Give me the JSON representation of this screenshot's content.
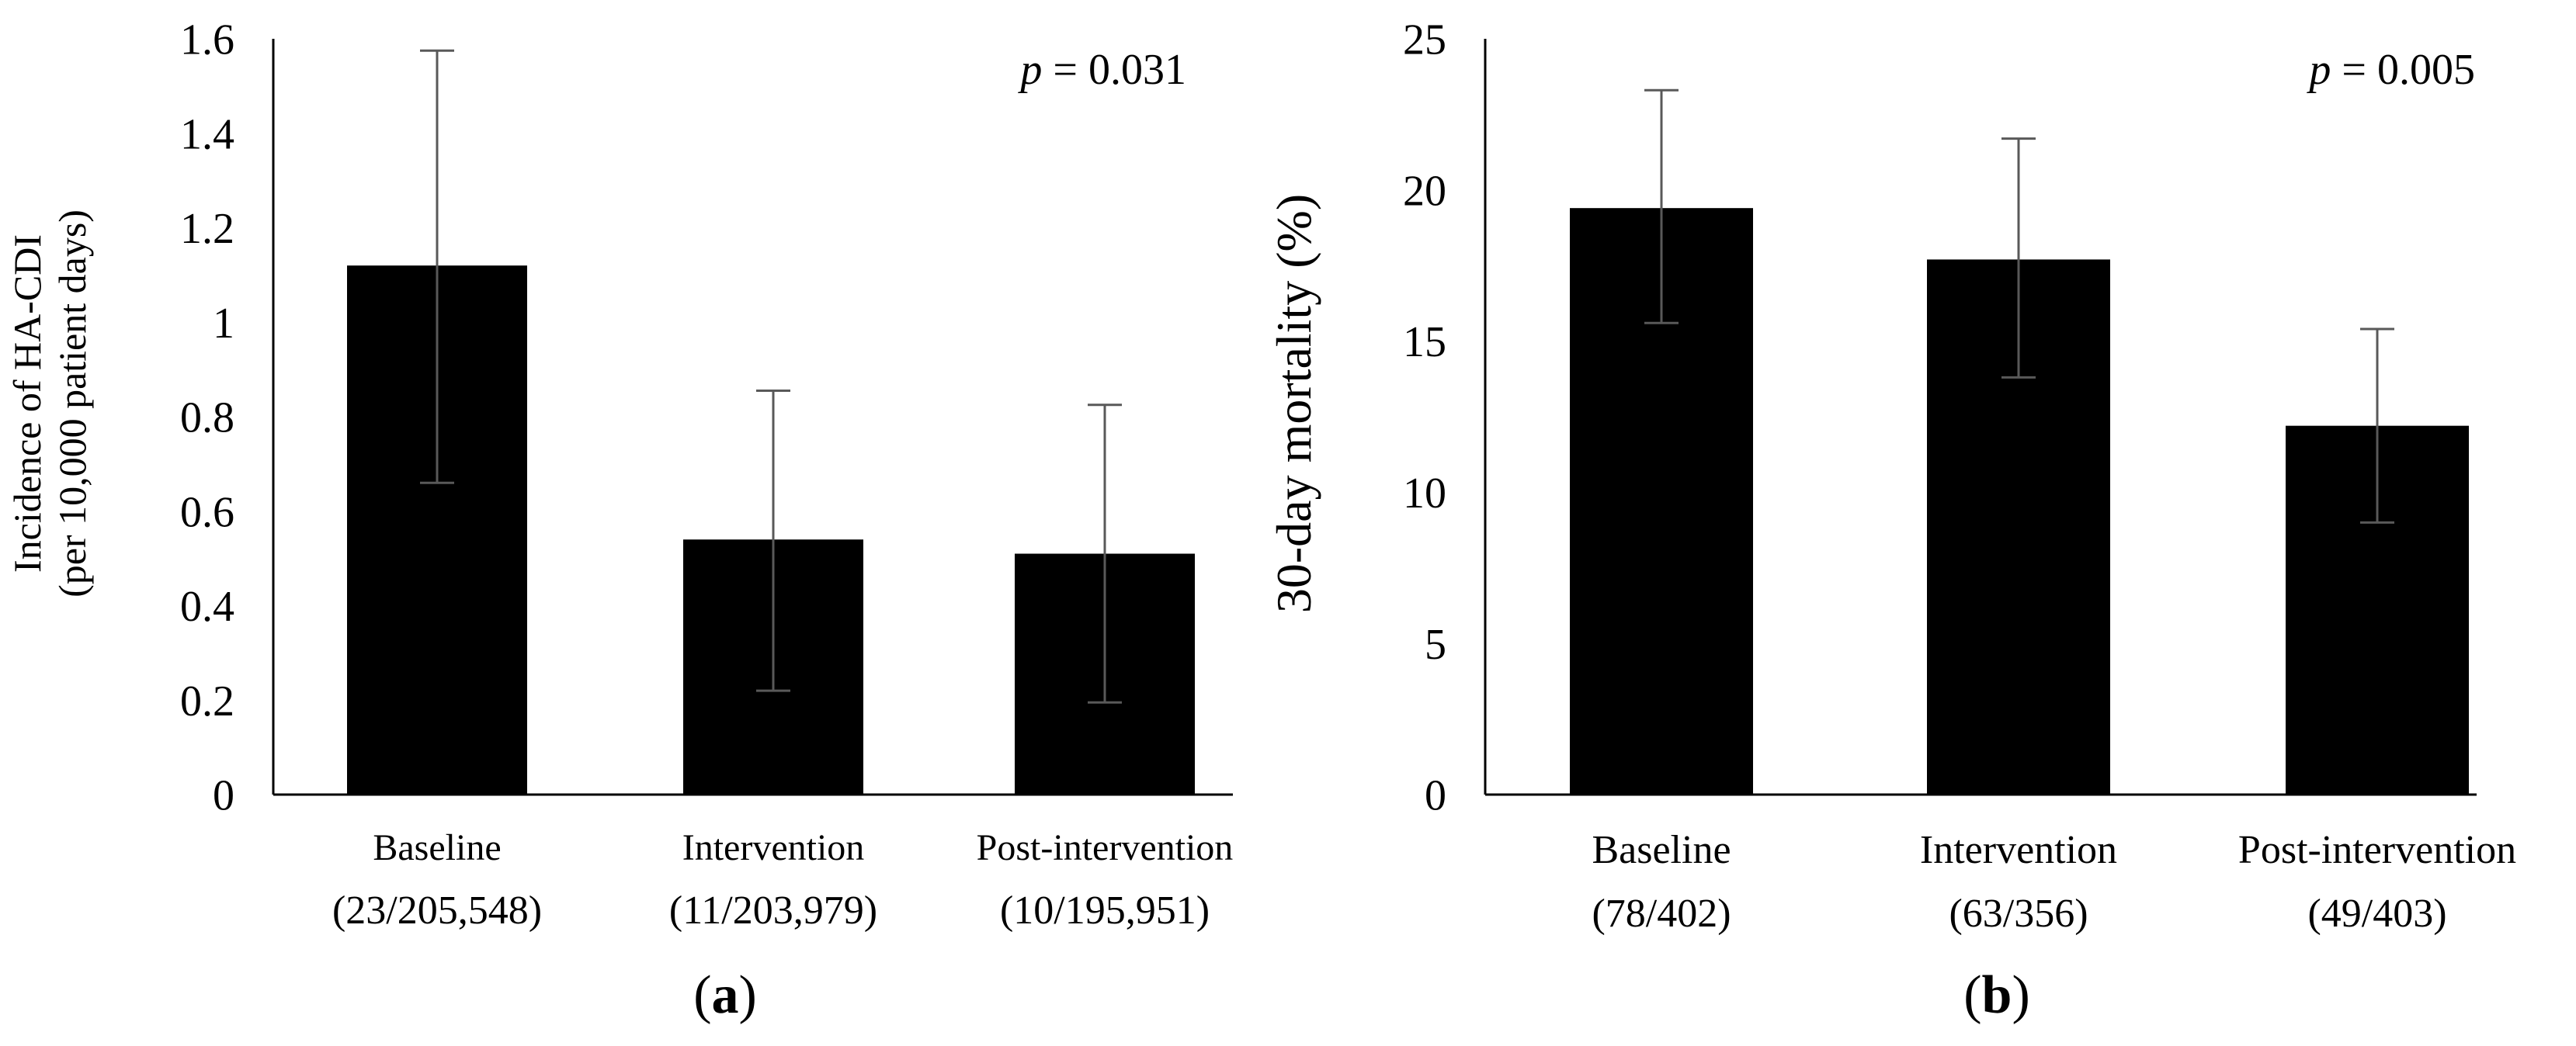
{
  "colors": {
    "bar": "#000000",
    "axis": "#000000",
    "errorbar": "#595959",
    "background": "#ffffff"
  },
  "chart_data": [
    {
      "panel_label": "a",
      "type": "bar",
      "categories": [
        "Baseline",
        "Intervention",
        "Post-intervention"
      ],
      "category_counts": [
        "(23/205,548)",
        "(11/203,979)",
        "(10/195,951)"
      ],
      "values": [
        1.12,
        0.54,
        0.51
      ],
      "error_low": [
        0.66,
        0.22,
        0.195
      ],
      "error_high": [
        1.575,
        0.855,
        0.825
      ],
      "ylabel_line1": "Incidence  of HA-CDI",
      "ylabel_line2": "(per 10,000 patient days)",
      "ylim": [
        0,
        1.6
      ],
      "yticks": [
        "0",
        "0.2",
        "0.4",
        "0.6",
        "0.8",
        "1",
        "1.2",
        "1.4",
        "1.6"
      ],
      "annotation": {
        "italic": "p",
        "rest": " = 0.031"
      },
      "grid": false
    },
    {
      "panel_label": "b",
      "type": "bar",
      "categories": [
        "Baseline",
        "Intervention",
        "Post-intervention"
      ],
      "category_counts": [
        "(78/402)",
        "(63/356)",
        "(49/403)"
      ],
      "values": [
        19.4,
        17.7,
        12.2
      ],
      "error_low": [
        15.6,
        13.8,
        9.0
      ],
      "error_high": [
        23.3,
        21.7,
        15.4
      ],
      "ylabel_line1": "30-day mortality (%)",
      "ylabel_line2": "",
      "ylim": [
        0,
        25
      ],
      "yticks": [
        "0",
        "5",
        "10",
        "15",
        "20",
        "25"
      ],
      "annotation": {
        "italic": "p",
        "rest": " = 0.005"
      },
      "grid": false
    }
  ]
}
